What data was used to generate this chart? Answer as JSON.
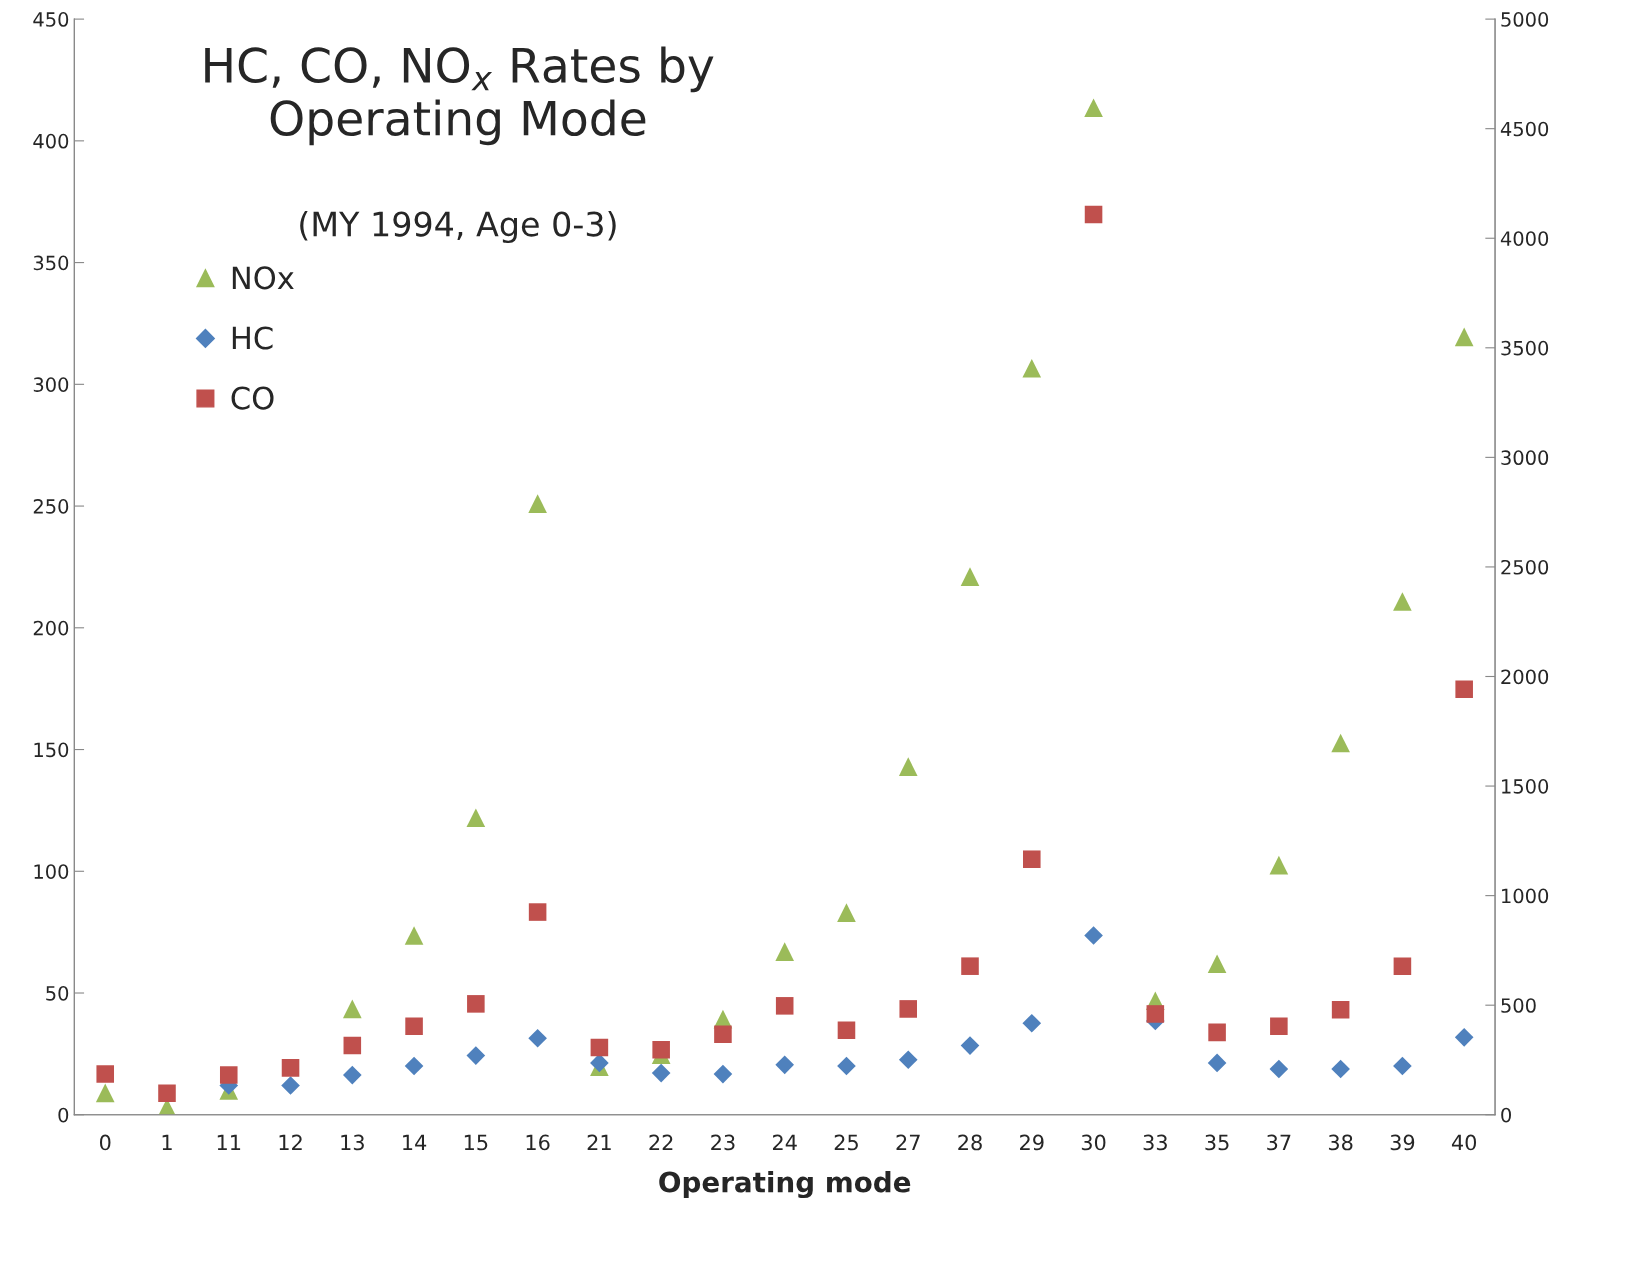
{
  "chart_data": {
    "type": "scatter",
    "title": "HC, CO, NO$_{x}$ Rates by\nOperating Mode",
    "subtitle": "(MY 1994, Age 0-3)",
    "xlabel": "Operating mode",
    "categories": [
      "0",
      "1",
      "11",
      "12",
      "13",
      "14",
      "15",
      "16",
      "21",
      "22",
      "23",
      "24",
      "25",
      "27",
      "28",
      "29",
      "30",
      "33",
      "35",
      "37",
      "38",
      "39",
      "40"
    ],
    "series": [
      {
        "name": "NOx",
        "color": "#9bbb59",
        "marker": "triangle",
        "values": [
          9,
          3,
          10,
          null,
          43.5,
          73.6,
          122,
          251,
          19.7,
          24.7,
          39.3,
          67,
          83,
          143,
          221,
          306.6,
          413.6,
          46.8,
          62,
          102.5,
          152.7,
          210.8,
          319.5
        ]
      },
      {
        "name": "HC",
        "color": "#4f81bd",
        "marker": "diamond",
        "values": [
          null,
          null,
          12,
          12,
          16.3,
          20,
          24.3,
          31.4,
          21.3,
          17.1,
          16.7,
          20.5,
          20,
          22.6,
          28.4,
          37.6,
          73.6,
          38.5,
          21.3,
          18.8,
          18.8,
          20,
          31.8
        ]
      },
      {
        "name": "CO",
        "color": "#c0504d",
        "marker": "square",
        "axis": "y2",
        "values": [
          186,
          98,
          181,
          214,
          316,
          404,
          506,
          925,
          307,
          297,
          367,
          497,
          386,
          483,
          678,
          1166,
          4108,
          460,
          376,
          404,
          479,
          678,
          1942
        ]
      }
    ],
    "ylim": [
      0,
      450
    ],
    "yticks": [
      0,
      50,
      100,
      150,
      200,
      250,
      300,
      350,
      400,
      450
    ],
    "y2lim": [
      0,
      5000
    ],
    "y2ticks": [
      0,
      500,
      1000,
      1500,
      2000,
      2500,
      3000,
      3500,
      4000,
      4500,
      5000
    ],
    "grid": false,
    "legend": "top left"
  }
}
